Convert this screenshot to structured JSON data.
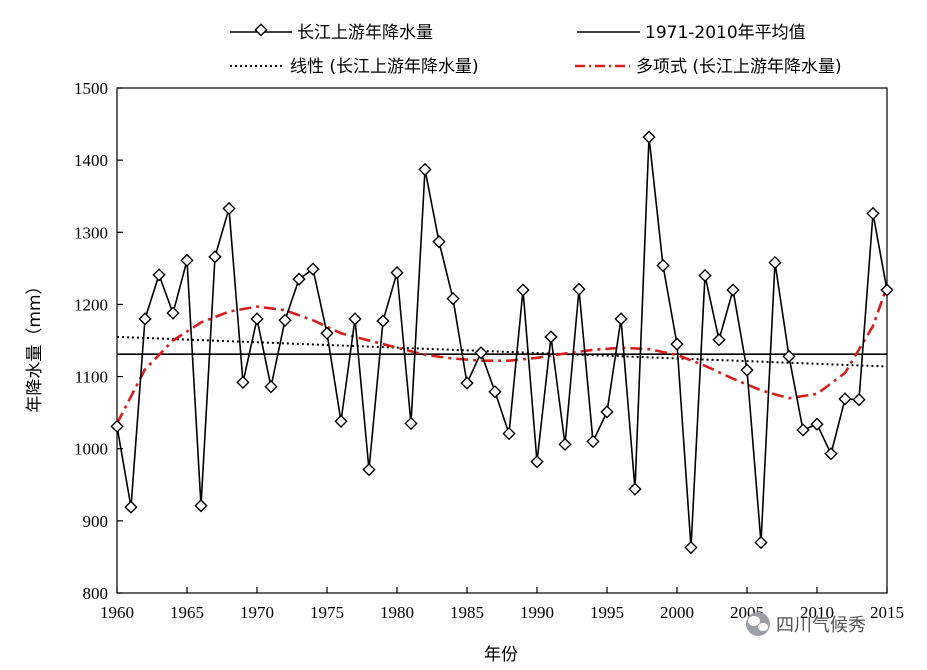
{
  "chart_data": {
    "type": "line",
    "xlabel": "年份",
    "ylabel": "年降水量（mm）",
    "xlim": [
      1960,
      2015
    ],
    "ylim": [
      800,
      1500
    ],
    "xticks": [
      1960,
      1965,
      1970,
      1975,
      1980,
      1985,
      1990,
      1995,
      2000,
      2005,
      2010,
      2015
    ],
    "yticks": [
      800,
      900,
      1000,
      1100,
      1200,
      1300,
      1400,
      1500
    ],
    "grid": false,
    "legend_position": "top",
    "series": [
      {
        "name": "长江上游年降水量",
        "style": "solid-diamond",
        "color": "#000000",
        "x": [
          1960,
          1961,
          1962,
          1963,
          1964,
          1965,
          1966,
          1967,
          1968,
          1969,
          1970,
          1971,
          1972,
          1973,
          1974,
          1975,
          1976,
          1977,
          1978,
          1979,
          1980,
          1981,
          1982,
          1983,
          1984,
          1985,
          1986,
          1987,
          1988,
          1989,
          1990,
          1991,
          1992,
          1993,
          1994,
          1995,
          1996,
          1997,
          1998,
          1999,
          2000,
          2001,
          2002,
          2003,
          2004,
          2005,
          2006,
          2007,
          2008,
          2009,
          2010,
          2011,
          2012,
          2013,
          2014,
          2015
        ],
        "y": [
          1031,
          919,
          1180,
          1241,
          1188,
          1261,
          921,
          1266,
          1333,
          1092,
          1180,
          1086,
          1178,
          1235,
          1249,
          1160,
          1038,
          1180,
          971,
          1177,
          1244,
          1035,
          1387,
          1287,
          1208,
          1091,
          1133,
          1079,
          1021,
          1220,
          982,
          1155,
          1006,
          1221,
          1010,
          1051,
          1180,
          944,
          1432,
          1254,
          1145,
          863,
          1240,
          1151,
          1220,
          1109,
          870,
          1258,
          1128,
          1026,
          1034,
          993,
          1069,
          1068,
          1326,
          1220
        ]
      },
      {
        "name": "1971-2010年平均值",
        "style": "solid",
        "color": "#000000",
        "x": [
          1960,
          2015
        ],
        "y": [
          1131,
          1131
        ]
      },
      {
        "name": "线性 (长江上游年降水量)",
        "style": "dotted",
        "color": "#000000",
        "x": [
          1960,
          2015
        ],
        "y": [
          1155,
          1114
        ]
      },
      {
        "name": "多项式 (长江上游年降水量)",
        "style": "dashdot",
        "color": "#d62020",
        "x": [
          1960,
          1962,
          1964,
          1966,
          1968,
          1970,
          1972,
          1974,
          1976,
          1978,
          1980,
          1982,
          1984,
          1986,
          1988,
          1990,
          1992,
          1994,
          1996,
          1998,
          2000,
          2002,
          2004,
          2006,
          2008,
          2010,
          2012,
          2014,
          2015
        ],
        "y": [
          1035,
          1110,
          1150,
          1175,
          1190,
          1197,
          1192,
          1178,
          1160,
          1150,
          1140,
          1130,
          1125,
          1122,
          1122,
          1126,
          1132,
          1137,
          1140,
          1138,
          1130,
          1115,
          1097,
          1081,
          1070,
          1076,
          1105,
          1170,
          1225
        ]
      }
    ]
  },
  "watermark": {
    "text": "四川气候秀",
    "icon": "wechat-icon"
  }
}
